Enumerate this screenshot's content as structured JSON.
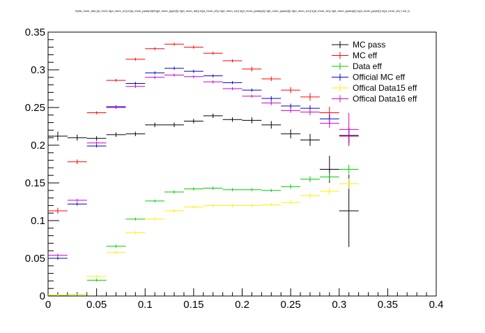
{
  "chart_data": {
    "type": "scatter",
    "title": "h(eta_mum_abl) (pt_rho1) h(pt_mum_a1)) h(pt_mum_ppaep)l(hh)(pt_mum_pppe(l)) h(pt_mum_abl)) h(pt_mum_a1)) h(pt_mum_a1)) h(pt_mum_ppaep(l)) h(pt_mum_ppaep(l)) h(pt_mum_a1)) h(pt_mum_a1)) h(pt_mum_ppaep(l)) h(pt_mum_pppe(l)) h(pt_mum_a1) ) mu_t)",
    "xlabel": "",
    "ylabel": "",
    "xlim": [
      0,
      0.4
    ],
    "ylim": [
      0,
      0.35
    ],
    "x_ticks": [
      "0",
      "0.05",
      "0.1",
      "0.15",
      "0.2",
      "0.25",
      "0.3",
      "0.35",
      "0.4"
    ],
    "y_ticks": [
      "0",
      "0.05",
      "0.1",
      "0.15",
      "0.2",
      "0.25",
      "0.3",
      "0.35"
    ],
    "bin_width": 0.02,
    "x": [
      0.01,
      0.03,
      0.05,
      0.07,
      0.09,
      0.11,
      0.13,
      0.15,
      0.17,
      0.19,
      0.21,
      0.23,
      0.25,
      0.27,
      0.29,
      0.31
    ],
    "legend_position": "top-right",
    "grid": false,
    "series": [
      {
        "name": "MC pass",
        "color": "#000000",
        "x": [
          0.01,
          0.03,
          0.05,
          0.07,
          0.09,
          0.11,
          0.13,
          0.15,
          0.17,
          0.19,
          0.21,
          0.23,
          0.25,
          0.27,
          0.29,
          0.31
        ],
        "values": [
          0.212,
          0.21,
          0.209,
          0.214,
          0.215,
          0.227,
          0.227,
          0.232,
          0.239,
          0.234,
          0.233,
          0.227,
          0.215,
          0.207,
          0.168,
          0.113
        ],
        "errors": [
          0.006,
          0.004,
          0.003,
          0.003,
          0.003,
          0.003,
          0.003,
          0.003,
          0.003,
          0.003,
          0.004,
          0.005,
          0.006,
          0.008,
          0.018,
          0.048
        ]
      },
      {
        "name": "MC eff",
        "color": "#ff0000",
        "x": [
          0.01,
          0.03,
          0.05,
          0.07,
          0.09,
          0.11,
          0.13,
          0.15,
          0.17,
          0.19,
          0.21,
          0.23,
          0.25,
          0.27,
          0.29,
          0.31
        ],
        "values": [
          0.113,
          0.178,
          0.243,
          0.286,
          0.314,
          0.328,
          0.334,
          0.33,
          0.322,
          0.312,
          0.301,
          0.288,
          0.273,
          0.264,
          0.243,
          0.212
        ],
        "errors": [
          0.004,
          0.003,
          0.002,
          0.002,
          0.002,
          0.002,
          0.002,
          0.002,
          0.002,
          0.002,
          0.003,
          0.003,
          0.004,
          0.005,
          0.008,
          0.012
        ]
      },
      {
        "name": "Data eff",
        "color": "#00cc00",
        "x": [
          0.01,
          0.03,
          0.05,
          0.07,
          0.09,
          0.11,
          0.13,
          0.15,
          0.17,
          0.19,
          0.21,
          0.23,
          0.25,
          0.27,
          0.29,
          0.31
        ],
        "values": [
          0.001,
          0.002,
          0.021,
          0.066,
          0.102,
          0.126,
          0.138,
          0.142,
          0.143,
          0.141,
          0.141,
          0.14,
          0.145,
          0.155,
          0.158,
          0.168
        ],
        "errors": [
          0.001,
          0.001,
          0.002,
          0.002,
          0.002,
          0.002,
          0.002,
          0.002,
          0.002,
          0.002,
          0.002,
          0.002,
          0.003,
          0.004,
          0.005,
          0.006
        ]
      },
      {
        "name": "Official MC eff",
        "color": "#0000cc",
        "x": [
          0.01,
          0.03,
          0.05,
          0.07,
          0.09,
          0.11,
          0.13,
          0.15,
          0.17,
          0.19,
          0.21,
          0.23,
          0.25,
          0.27,
          0.29,
          0.31
        ],
        "values": [
          0.05,
          0.122,
          0.199,
          0.251,
          0.282,
          0.296,
          0.302,
          0.298,
          0.292,
          0.283,
          0.273,
          0.262,
          0.252,
          0.249,
          0.235,
          0.213
        ],
        "errors": [
          0.002,
          0.002,
          0.002,
          0.002,
          0.002,
          0.002,
          0.002,
          0.002,
          0.002,
          0.002,
          0.002,
          0.003,
          0.003,
          0.004,
          0.006,
          0.01
        ]
      },
      {
        "name": "Offical Data15 eff",
        "color": "#ffee00",
        "x": [
          0.01,
          0.03,
          0.05,
          0.07,
          0.09,
          0.11,
          0.13,
          0.15,
          0.17,
          0.19,
          0.21,
          0.23,
          0.25,
          0.27,
          0.29,
          0.31
        ],
        "values": [
          0.001,
          0.002,
          0.026,
          0.058,
          0.084,
          0.102,
          0.113,
          0.118,
          0.12,
          0.12,
          0.12,
          0.121,
          0.124,
          0.133,
          0.139,
          0.149
        ],
        "errors": [
          0.001,
          0.001,
          0.002,
          0.002,
          0.002,
          0.002,
          0.002,
          0.002,
          0.002,
          0.002,
          0.002,
          0.002,
          0.003,
          0.003,
          0.005,
          0.007
        ]
      },
      {
        "name": "Offical Data16 eff",
        "color": "#cc00cc",
        "x": [
          0.01,
          0.03,
          0.05,
          0.07,
          0.09,
          0.11,
          0.13,
          0.15,
          0.17,
          0.19,
          0.21,
          0.23,
          0.25,
          0.27,
          0.29,
          0.31
        ],
        "values": [
          0.054,
          0.127,
          0.203,
          0.25,
          0.278,
          0.29,
          0.293,
          0.291,
          0.284,
          0.275,
          0.265,
          0.256,
          0.246,
          0.244,
          0.229,
          0.221
        ],
        "errors": [
          0.002,
          0.002,
          0.002,
          0.002,
          0.002,
          0.002,
          0.002,
          0.002,
          0.002,
          0.002,
          0.002,
          0.003,
          0.003,
          0.004,
          0.006,
          0.022
        ]
      }
    ]
  }
}
